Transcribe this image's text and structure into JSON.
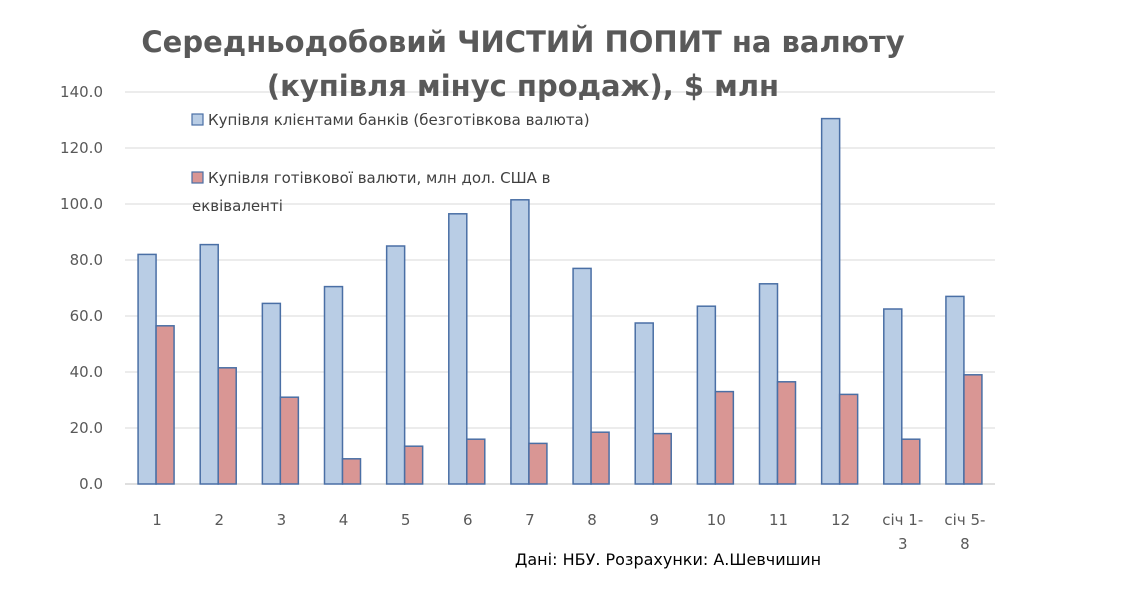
{
  "chart_data": {
    "type": "bar",
    "title_lines": [
      "Середньодобовий ЧИСТИЙ ПОПИТ на валюту",
      "(купівля мінус продаж), $ млн"
    ],
    "categories": [
      "1",
      "2",
      "3",
      "4",
      "5",
      "6",
      "7",
      "8",
      "9",
      "10",
      "11",
      "12",
      "січ 1-3",
      "січ 5-8"
    ],
    "category_label_lines": [
      [
        "1"
      ],
      [
        "2"
      ],
      [
        "3"
      ],
      [
        "4"
      ],
      [
        "5"
      ],
      [
        "6"
      ],
      [
        "7"
      ],
      [
        "8"
      ],
      [
        "9"
      ],
      [
        "10"
      ],
      [
        "11"
      ],
      [
        "12"
      ],
      [
        "січ 1-",
        "3"
      ],
      [
        "січ 5-",
        "8"
      ]
    ],
    "series": [
      {
        "name": "Купівля клієнтами банків (безготівкова валюта)",
        "color": "#b9cde5",
        "stroke": "#4a6fa5",
        "values": [
          82.0,
          85.5,
          64.5,
          70.5,
          85.0,
          96.5,
          101.5,
          77.0,
          57.5,
          63.5,
          71.5,
          130.5,
          62.5,
          67.0
        ]
      },
      {
        "name": "Купівля готівкової валюти, млн дол. США в еквіваленті",
        "name_lines": [
          "Купівля готівкової валюти, млн дол. США в",
          "еквіваленті"
        ],
        "color": "#d99694",
        "stroke": "#4a6fa5",
        "values": [
          56.5,
          41.5,
          31.0,
          9.0,
          13.5,
          16.0,
          14.5,
          18.5,
          18.0,
          33.0,
          36.5,
          32.0,
          16.0,
          39.0
        ]
      }
    ],
    "ylim": [
      0,
      140
    ],
    "yticks": [
      "0.0",
      "20.0",
      "40.0",
      "60.0",
      "80.0",
      "100.0",
      "120.0",
      "140.0"
    ],
    "ytick_values": [
      0,
      20,
      40,
      60,
      80,
      100,
      120,
      140
    ],
    "grid": true,
    "legend_position": "top-left inside plot",
    "source_note": "Дані: НБУ. Розрахунки: А.Шевчишин"
  }
}
